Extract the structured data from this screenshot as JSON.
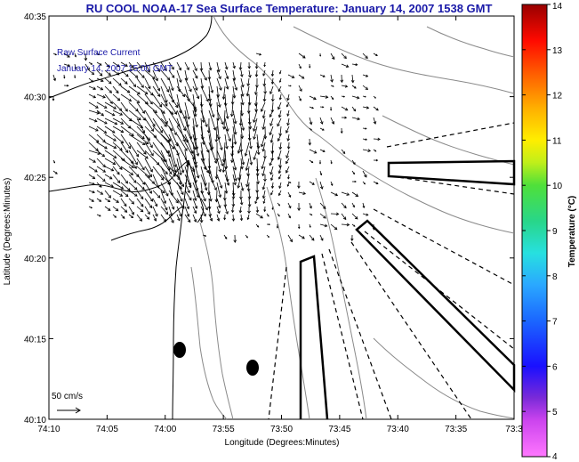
{
  "title": "RU COOL  NOAA-17  Sea Surface Temperature:  January 14, 2007 1538 GMT",
  "annotation": {
    "line1": "Raw Surface Current",
    "line2": "January 14, 2007 15:00 GMT"
  },
  "scale": {
    "label": "50 cm/s"
  },
  "axes": {
    "xlabel": "Longitude (Degrees:Minutes)",
    "ylabel": "Latitude (Degrees:Minutes)",
    "xticks": [
      "74:10",
      "74:05",
      "74:00",
      "73:55",
      "73:50",
      "73:45",
      "73:40",
      "73:35",
      "73:3"
    ],
    "yticks": [
      "40:35",
      "40:30",
      "40:25",
      "40:20",
      "40:15",
      "40:10"
    ]
  },
  "colorbar": {
    "label": "Temperature (°C)",
    "ticks": [
      "14",
      "13",
      "12",
      "11",
      "10",
      "9",
      "8",
      "7",
      "6",
      "5",
      "4"
    ]
  }
}
